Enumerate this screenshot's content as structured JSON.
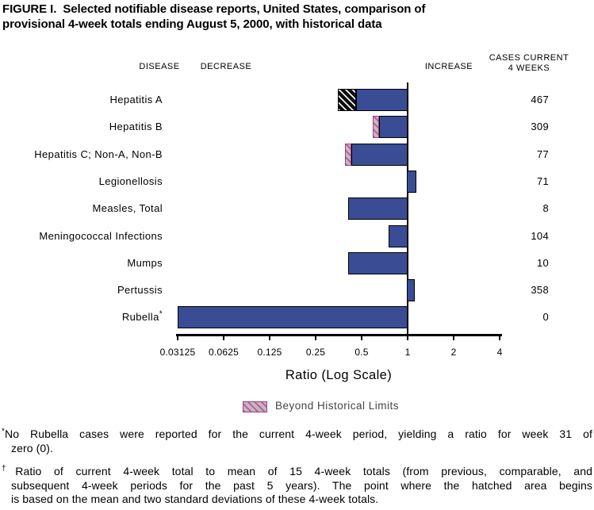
{
  "title": {
    "line1": "FIGURE I.  Selected notifiable disease reports, United States, comparison of",
    "line2": "provisional 4-week totals ending August 5, 2000, with historical data"
  },
  "headers": {
    "disease": "DISEASE",
    "decrease": "DECREASE",
    "increase": "INCREASE",
    "cases_line1": "CASES CURRENT",
    "cases_line2": "4 WEEKS"
  },
  "chart_data": {
    "type": "bar",
    "orientation": "horizontal",
    "scale": "log2",
    "xlabel": "Ratio (Log Scale)",
    "xlim": [
      0.03125,
      4
    ],
    "baseline_ratio": 1,
    "axis_ticks": [
      0.03125,
      0.0625,
      0.125,
      0.25,
      0.5,
      1,
      2,
      4
    ],
    "tick_labels": [
      "0.03125",
      "0.0625",
      "0.125",
      "0.25",
      "0.5",
      "1",
      "2",
      "4"
    ],
    "legend_label": "Beyond Historical Limits",
    "rows": [
      {
        "disease": "Hepatitis A",
        "sup": "",
        "cases": "467",
        "ratio": 0.35,
        "beyond_limit_from": 0.46,
        "beyond_style": "black"
      },
      {
        "disease": "Hepatitis B",
        "sup": "",
        "cases": "309",
        "ratio": 0.59,
        "beyond_limit_from": 0.65,
        "beyond_style": "pink"
      },
      {
        "disease": "Hepatitis C; Non-A, Non-B",
        "sup": "",
        "cases": "77",
        "ratio": 0.39,
        "beyond_limit_from": 0.43,
        "beyond_style": "pink"
      },
      {
        "disease": "Legionellosis",
        "sup": "",
        "cases": "71",
        "ratio": 1.14
      },
      {
        "disease": "Measles, Total",
        "sup": "",
        "cases": "8",
        "ratio": 0.41
      },
      {
        "disease": "Meningococcal Infections",
        "sup": "",
        "cases": "104",
        "ratio": 0.75
      },
      {
        "disease": "Mumps",
        "sup": "",
        "cases": "10",
        "ratio": 0.41
      },
      {
        "disease": "Pertussis",
        "sup": "",
        "cases": "358",
        "ratio": 1.11
      },
      {
        "disease": "Rubella",
        "sup": "*",
        "cases": "0",
        "ratio": 0
      }
    ]
  },
  "legend": {
    "label": "Beyond Historical Limits"
  },
  "footnotes": {
    "f1_marker": "*",
    "f1_line1": "No Rubella cases were reported for the current 4-week period, yielding a ratio for week 31 of",
    "f1_line2": "zero (0).",
    "f2_marker": "†",
    "f2_line1": "Ratio of current 4-week total to mean of 15 4-week totals (from previous, comparable, and",
    "f2_line2": "subsequent 4-week periods for the past 5 years). The point where the hatched area begins",
    "f2_line3": "is based on the mean and two standard deviations of these 4-week totals."
  },
  "colors": {
    "bar_blue": "#3a4d94",
    "hatch_black": "#0d0d0d",
    "hatch_pink_fill": "#bcbcbc",
    "hatch_pink_stripe": "#c44f9e",
    "hatch_pink_border": "#a73a86"
  }
}
